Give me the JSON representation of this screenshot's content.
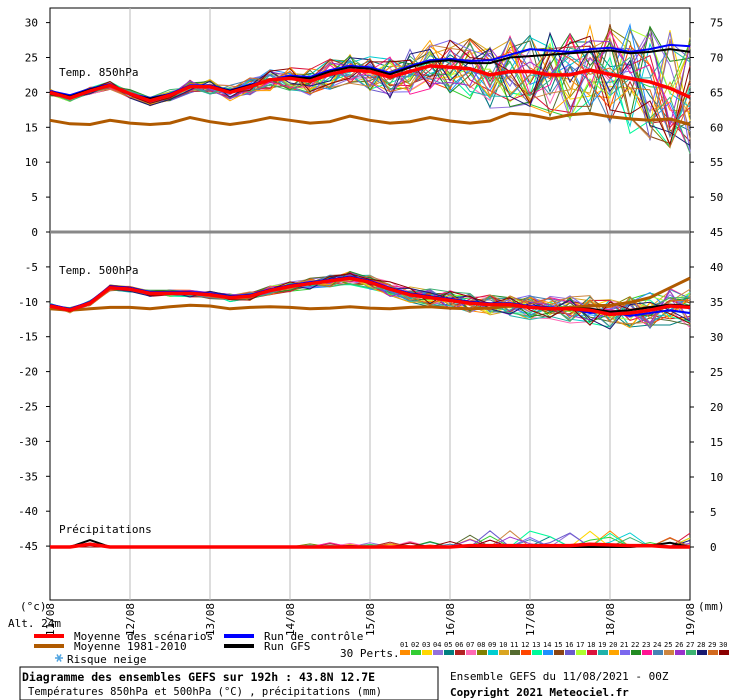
{
  "chart_data": [
    {
      "type": "line",
      "panel": "temperature",
      "x_labels": [
        "11/08",
        "12/08",
        "13/08",
        "14/08",
        "15/08",
        "16/08",
        "17/08",
        "18/08",
        "19/08"
      ],
      "y_left_ticks": [
        "30",
        "25",
        "20",
        "15",
        "10",
        "5",
        "0",
        "-5",
        "-10",
        "-15",
        "-20",
        "-25",
        "-30",
        "-35",
        "-40",
        "-45"
      ],
      "y_right_ticks": [
        "75",
        "70",
        "65",
        "60",
        "55",
        "50",
        "45",
        "40",
        "35",
        "30",
        "25",
        "20",
        "15",
        "10",
        "5",
        "0"
      ],
      "ylim": [
        -48,
        30
      ],
      "unit_left": "(°c)",
      "unit_right": "(mm)",
      "labels": {
        "t850": "Temp. 850hPa",
        "t500": "Temp. 500hPa",
        "precip": "Précipitations"
      },
      "x_hours": [
        0,
        6,
        12,
        18,
        24,
        30,
        36,
        42,
        48,
        54,
        60,
        66,
        72,
        78,
        84,
        90,
        96,
        102,
        108,
        114,
        120,
        126,
        132,
        138,
        144,
        150,
        156,
        162,
        168,
        174,
        180,
        186,
        192
      ],
      "series": [
        {
          "name": "Moyenne des scénarios",
          "level": "850",
          "values": [
            20,
            19.2,
            20.2,
            21,
            19.8,
            18.8,
            19.6,
            20.8,
            20.8,
            20,
            20.8,
            21.8,
            22,
            21.6,
            22.6,
            23.2,
            23,
            22.2,
            23,
            23.8,
            23.6,
            23.4,
            22.5,
            23,
            23,
            22.5,
            22.5,
            23.2,
            22.6,
            22,
            21.5,
            20.6,
            19.3
          ]
        },
        {
          "name": "Moyenne 1981-2010",
          "level": "850",
          "values": [
            16,
            15.5,
            15.4,
            16,
            15.6,
            15.4,
            15.6,
            16.4,
            15.8,
            15.4,
            15.8,
            16.4,
            16,
            15.6,
            15.8,
            16.6,
            16,
            15.6,
            15.8,
            16.4,
            15.9,
            15.6,
            15.9,
            17,
            16.8,
            16.2,
            16.8,
            17,
            16.5,
            16.2,
            16,
            16.2,
            15.4
          ]
        },
        {
          "name": "Run de contrôle",
          "level": "850",
          "values": [
            20.2,
            19.6,
            20.5,
            21.2,
            19.8,
            19.2,
            19.8,
            21,
            21,
            20.3,
            21.1,
            21.8,
            22.4,
            22.2,
            23.2,
            23.8,
            23.6,
            22.8,
            23.8,
            24.6,
            24.8,
            24.5,
            24.6,
            25.4,
            26.2,
            26,
            25.8,
            26.2,
            26.4,
            25.8,
            26.2,
            26.8,
            26.6
          ]
        },
        {
          "name": "Run GFS",
          "level": "850",
          "values": [
            20.1,
            19.4,
            20.4,
            21.1,
            19.7,
            19.1,
            19.7,
            20.9,
            20.9,
            20.2,
            21,
            21.7,
            22.2,
            22,
            23,
            23.6,
            23.4,
            22.6,
            23.6,
            24.4,
            24.6,
            24.2,
            24.2,
            25,
            25.2,
            25.4,
            25.6,
            25.8,
            26,
            25.6,
            25.8,
            26.2,
            25.8
          ]
        },
        {
          "name": "Moyenne des scénarios",
          "level": "500",
          "values": [
            -10.6,
            -11.2,
            -10.2,
            -8,
            -8.2,
            -8.8,
            -8.8,
            -8.8,
            -9,
            -9.4,
            -9.2,
            -8.4,
            -7.8,
            -7.4,
            -7,
            -6.6,
            -7.2,
            -8.2,
            -9,
            -9.4,
            -9.8,
            -10.2,
            -10.4,
            -10.4,
            -10.8,
            -11,
            -11,
            -11.2,
            -11.8,
            -11.6,
            -11.2,
            -10.6,
            -10.8
          ]
        },
        {
          "name": "Moyenne 1981-2010",
          "level": "500",
          "values": [
            -11,
            -11.2,
            -11,
            -10.8,
            -10.8,
            -11,
            -10.7,
            -10.5,
            -10.6,
            -11,
            -10.8,
            -10.7,
            -10.8,
            -11,
            -10.9,
            -10.7,
            -10.9,
            -11,
            -10.8,
            -10.7,
            -10.9,
            -11,
            -10.9,
            -10.6,
            -10.7,
            -11,
            -10.8,
            -10.6,
            -10.5,
            -10.1,
            -9.4,
            -8,
            -6.6
          ]
        },
        {
          "name": "Run de contrôle",
          "level": "500",
          "values": [
            -10.4,
            -11,
            -10,
            -7.8,
            -8,
            -8.6,
            -8.6,
            -8.6,
            -8.8,
            -9.2,
            -9,
            -8.2,
            -7.6,
            -7.2,
            -6.8,
            -6.4,
            -7,
            -8,
            -8.8,
            -9.2,
            -9.6,
            -10,
            -10.2,
            -10.2,
            -10.6,
            -10.8,
            -11,
            -11.6,
            -11.4,
            -12,
            -11.6,
            -11.2,
            -11.6
          ]
        },
        {
          "name": "Run GFS",
          "level": "500",
          "values": [
            -10.5,
            -11.1,
            -10.1,
            -7.9,
            -8.1,
            -8.7,
            -8.7,
            -8.7,
            -8.9,
            -9.3,
            -9.1,
            -8.3,
            -7.7,
            -7.3,
            -6.9,
            -6.5,
            -7.1,
            -8.1,
            -8.9,
            -9.3,
            -9.7,
            -10.1,
            -10.3,
            -10.3,
            -10.7,
            -10.9,
            -10.9,
            -11,
            -11.4,
            -11.2,
            -10.8,
            -10.4,
            -10.6
          ]
        },
        {
          "name": "Moyenne des scénarios",
          "level": "precip",
          "values": [
            0,
            0,
            0.4,
            0,
            0,
            0,
            0,
            0,
            0,
            0,
            0,
            0,
            0,
            0,
            0,
            0,
            0,
            0,
            0,
            0,
            0,
            0.2,
            0.2,
            0.2,
            0.2,
            0.2,
            0.2,
            0.4,
            0.3,
            0.2,
            0.2,
            0,
            0
          ]
        },
        {
          "name": "Run GFS",
          "level": "precip",
          "values": [
            0,
            0,
            1,
            0,
            0,
            0,
            0,
            0,
            0,
            0,
            0,
            0,
            0,
            0,
            0,
            0,
            0,
            0,
            0,
            0,
            0,
            0,
            0,
            0,
            0,
            0,
            0,
            0,
            0,
            0,
            0.2,
            0.6,
            0
          ]
        }
      ]
    }
  ],
  "legend": {
    "items": [
      {
        "label": "Moyenne des scénarios",
        "color": "#ff0000"
      },
      {
        "label": "Moyenne 1981-2010",
        "color": "#b05a00"
      },
      {
        "label": "Run de contrôle",
        "color": "#0000ff"
      },
      {
        "label": "Run GFS",
        "color": "#000000"
      }
    ],
    "snow": "Risque neige",
    "perts_label": "30 Perts.",
    "perts_ids": [
      "01",
      "02",
      "03",
      "04",
      "05",
      "06",
      "07",
      "08",
      "09",
      "10",
      "11",
      "12",
      "13",
      "14",
      "15",
      "16",
      "17",
      "18",
      "19",
      "20",
      "21",
      "22",
      "23",
      "24",
      "25",
      "26",
      "27",
      "28",
      "29",
      "30"
    ],
    "perts_colors": [
      "#ff8c00",
      "#32cd32",
      "#ffd700",
      "#9370db",
      "#008080",
      "#b22222",
      "#ff69b4",
      "#808000",
      "#00ced1",
      "#daa520",
      "#556b2f",
      "#ff4500",
      "#00fa9a",
      "#1e90ff",
      "#8b4513",
      "#6a5acd",
      "#adff2f",
      "#dc143c",
      "#20b2aa",
      "#ffa500",
      "#7b68ee",
      "#228b22",
      "#ff1493",
      "#4682b4",
      "#cd853f",
      "#9932cc",
      "#3cb371",
      "#191970",
      "#d2691e",
      "#8b0000"
    ]
  },
  "alt": "Alt. 24m",
  "footer": {
    "title": "Diagramme des ensembles GEFS sur 192h : 43.8N 12.7E",
    "subtitle": "Températures 850hPa et 500hPa (°C) , précipitations (mm)",
    "run": "Ensemble GEFS du 11/08/2021 - 00Z",
    "copyright": "Copyright 2021 Meteociel.fr"
  }
}
